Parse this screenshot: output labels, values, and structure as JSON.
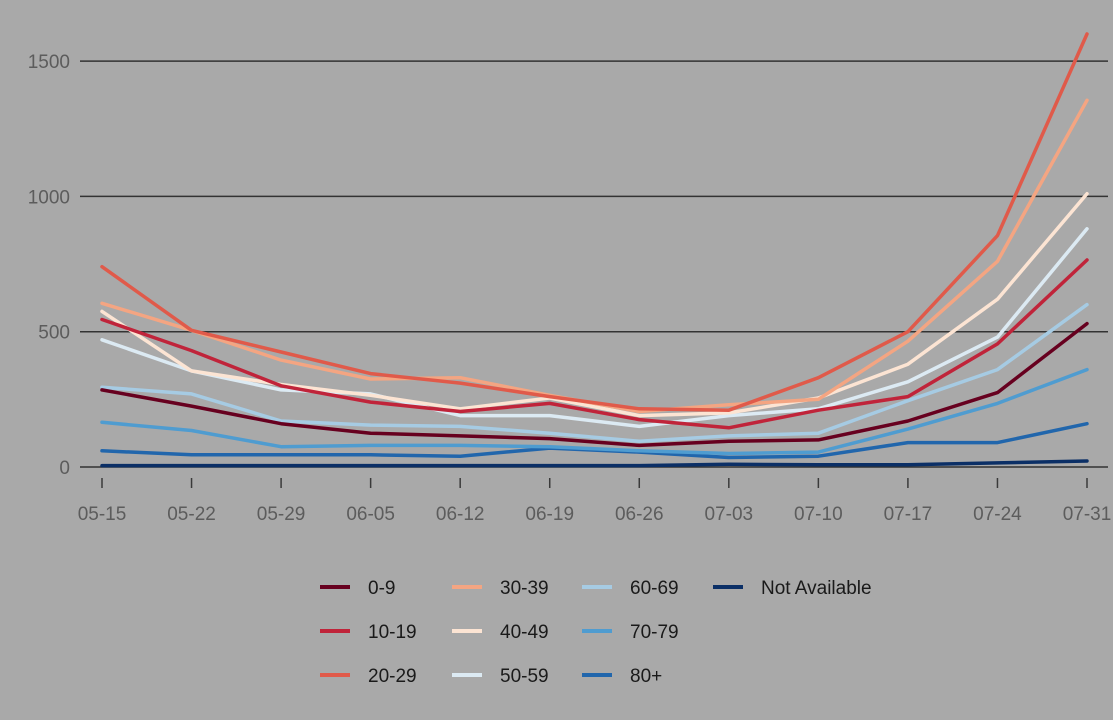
{
  "chart_data": {
    "type": "line",
    "title": "",
    "xlabel": "",
    "ylabel": "",
    "x": [
      "05-15",
      "05-22",
      "05-29",
      "06-05",
      "06-12",
      "06-19",
      "06-26",
      "07-03",
      "07-10",
      "07-17",
      "07-24",
      "07-31"
    ],
    "ylim": [
      0,
      1600
    ],
    "yticks": [
      0,
      500,
      1000,
      1500
    ],
    "grid": "horizontal",
    "legend_position": "bottom",
    "colors": {
      "background": "#a9a9a9",
      "gridline": "#333333",
      "tick_text": "#5c5c5c"
    },
    "series": [
      {
        "name": "0-9",
        "color": "#67001f",
        "values": [
          285,
          225,
          160,
          125,
          115,
          105,
          80,
          95,
          100,
          170,
          275,
          530
        ]
      },
      {
        "name": "10-19",
        "color": "#c0243a",
        "values": [
          545,
          430,
          300,
          240,
          205,
          235,
          175,
          145,
          210,
          260,
          455,
          765
        ]
      },
      {
        "name": "20-29",
        "color": "#e05a4a",
        "values": [
          740,
          505,
          425,
          345,
          310,
          260,
          215,
          210,
          330,
          500,
          855,
          1600
        ]
      },
      {
        "name": "30-39",
        "color": "#f4a582",
        "values": [
          605,
          505,
          395,
          325,
          330,
          265,
          205,
          230,
          250,
          465,
          760,
          1355
        ]
      },
      {
        "name": "40-49",
        "color": "#fce4d3",
        "values": [
          575,
          355,
          305,
          265,
          215,
          255,
          190,
          200,
          255,
          380,
          620,
          1010
        ]
      },
      {
        "name": "50-59",
        "color": "#dceaf3",
        "values": [
          470,
          355,
          285,
          270,
          190,
          190,
          150,
          190,
          215,
          315,
          480,
          880
        ]
      },
      {
        "name": "60-69",
        "color": "#a6cbe3",
        "values": [
          295,
          270,
          170,
          155,
          150,
          125,
          95,
          115,
          125,
          245,
          360,
          600
        ]
      },
      {
        "name": "70-79",
        "color": "#4f9cd0",
        "values": [
          165,
          135,
          75,
          80,
          80,
          75,
          60,
          50,
          55,
          140,
          235,
          360
        ]
      },
      {
        "name": "80+",
        "color": "#2166ac",
        "values": [
          60,
          45,
          45,
          45,
          40,
          70,
          55,
          35,
          40,
          90,
          90,
          160
        ]
      },
      {
        "name": "Not Available",
        "color": "#0b2f66",
        "values": [
          5,
          5,
          5,
          5,
          5,
          5,
          5,
          10,
          8,
          8,
          15,
          22
        ]
      }
    ]
  }
}
